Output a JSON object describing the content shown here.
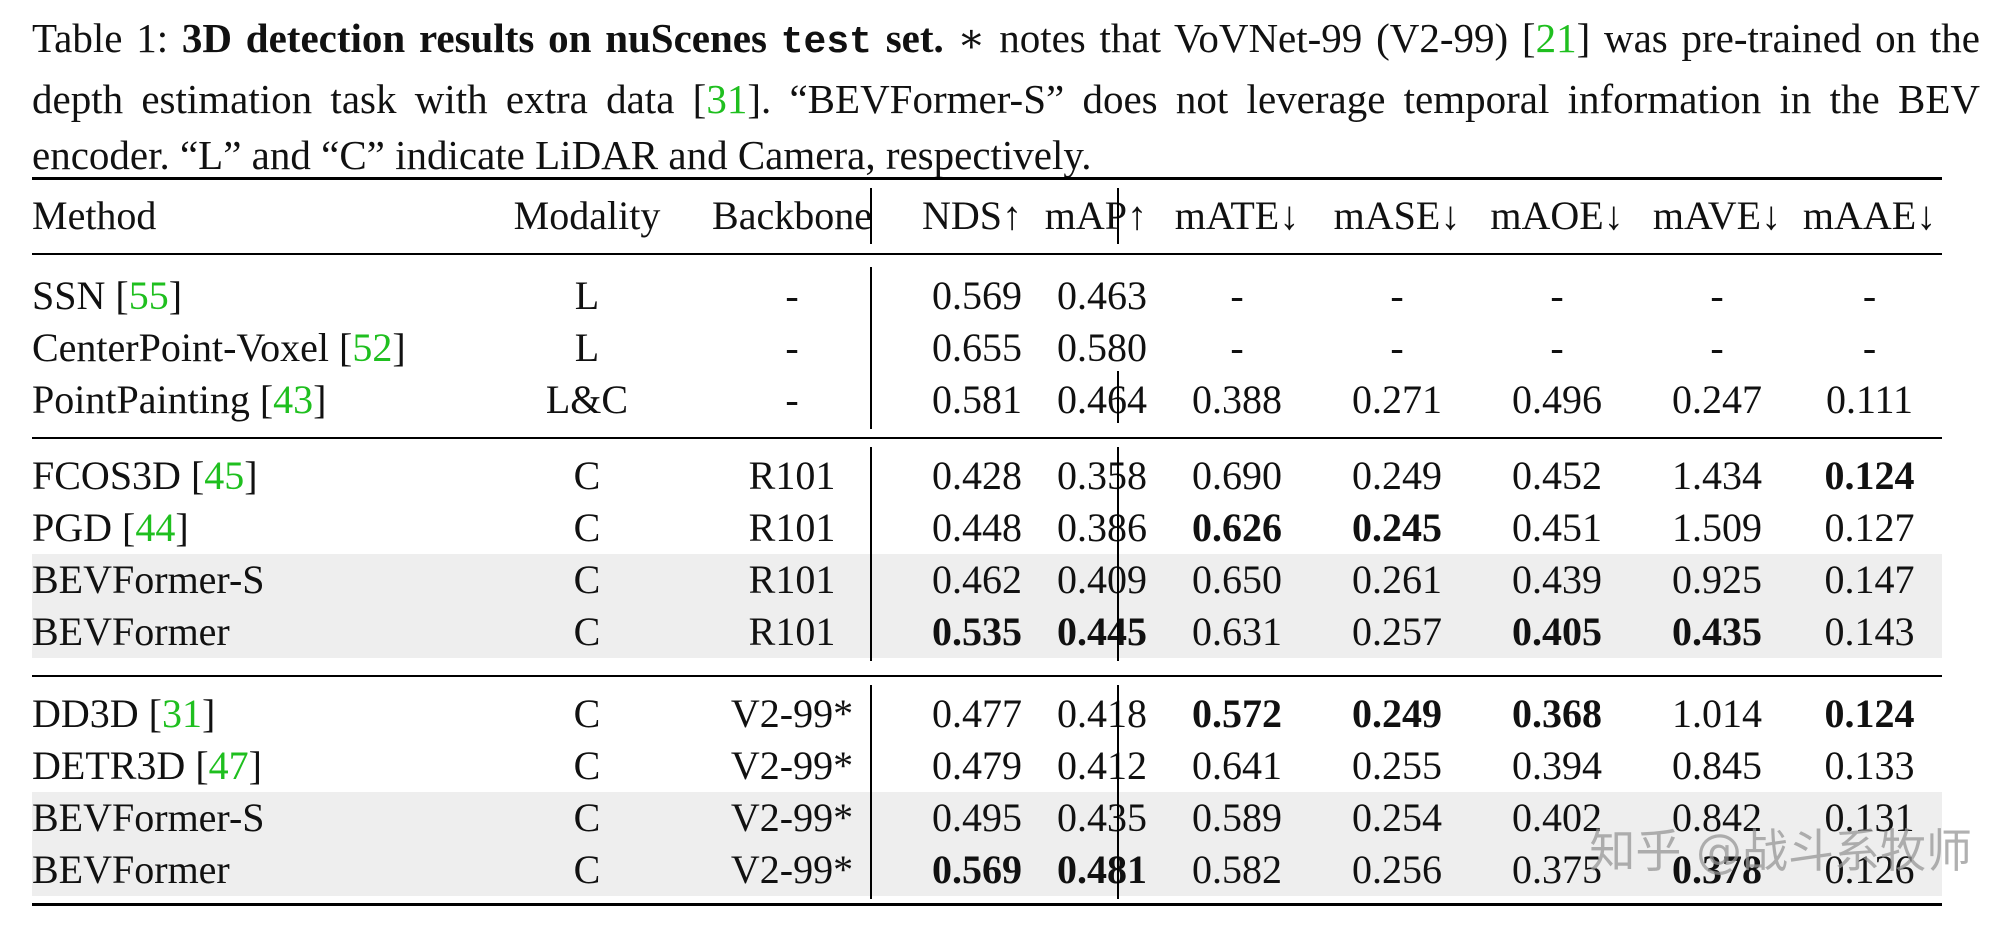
{
  "caption": {
    "label": "Table 1: ",
    "bold_text": "3D detection results on nuScenes ",
    "mono_text": "test",
    "bold_text2": " set.",
    "text1": " ∗ notes that VoVNet-99 (V2-99) [",
    "ref1": "21",
    "text2": "] was pre-trained on the depth estimation task with extra data [",
    "ref2": "31",
    "text3": "]. “BEVFormer-S” does not leverage temporal information in the BEV encoder. “L” and “C” indicate LiDAR and Camera, respectively."
  },
  "table": {
    "headers": [
      "Method",
      "Modality",
      "Backbone",
      "NDS↑",
      "mAP↑",
      "mATE↓",
      "mASE↓",
      "mAOE↓",
      "mAVE↓",
      "mAAE↓"
    ],
    "groups": [
      {
        "rows": [
          {
            "method": "SSN ",
            "ref": "55",
            "modality": "L",
            "backbone": "-",
            "values": [
              "0.569",
              "0.463",
              "-",
              "-",
              "-",
              "-",
              "-"
            ],
            "bold": [],
            "shaded": false
          },
          {
            "method": "CenterPoint-Voxel ",
            "ref": "52",
            "modality": "L",
            "backbone": "-",
            "values": [
              "0.655",
              "0.580",
              "-",
              "-",
              "-",
              "-",
              "-"
            ],
            "bold": [],
            "shaded": false
          },
          {
            "method": "PointPainting ",
            "ref": "43",
            "modality": "L&C",
            "backbone": "-",
            "values": [
              "0.581",
              "0.464",
              "0.388",
              "0.271",
              "0.496",
              "0.247",
              "0.111"
            ],
            "bold": [],
            "shaded": false
          }
        ]
      },
      {
        "rows": [
          {
            "method": "FCOS3D ",
            "ref": "45",
            "modality": "C",
            "backbone": "R101",
            "values": [
              "0.428",
              "0.358",
              "0.690",
              "0.249",
              "0.452",
              "1.434",
              "0.124"
            ],
            "bold": [
              6
            ],
            "shaded": false
          },
          {
            "method": "PGD ",
            "ref": "44",
            "modality": "C",
            "backbone": "R101",
            "values": [
              "0.448",
              "0.386",
              "0.626",
              "0.245",
              "0.451",
              "1.509",
              "0.127"
            ],
            "bold": [
              2,
              3
            ],
            "shaded": false
          },
          {
            "method": "BEVFormer-S",
            "ref": "",
            "modality": "C",
            "backbone": "R101",
            "values": [
              "0.462",
              "0.409",
              "0.650",
              "0.261",
              "0.439",
              "0.925",
              "0.147"
            ],
            "bold": [],
            "shaded": true
          },
          {
            "method": "BEVFormer",
            "ref": "",
            "modality": "C",
            "backbone": "R101",
            "values": [
              "0.535",
              "0.445",
              "0.631",
              "0.257",
              "0.405",
              "0.435",
              "0.143"
            ],
            "bold": [
              0,
              1,
              4,
              5
            ],
            "shaded": true
          }
        ]
      },
      {
        "rows": [
          {
            "method": "DD3D ",
            "ref": "31",
            "modality": "C",
            "backbone": "V2-99*",
            "values": [
              "0.477",
              "0.418",
              "0.572",
              "0.249",
              "0.368",
              "1.014",
              "0.124"
            ],
            "bold": [
              2,
              3,
              4,
              6
            ],
            "shaded": false
          },
          {
            "method": "DETR3D ",
            "ref": "47",
            "modality": "C",
            "backbone": "V2-99*",
            "values": [
              "0.479",
              "0.412",
              "0.641",
              "0.255",
              "0.394",
              "0.845",
              "0.133"
            ],
            "bold": [],
            "shaded": false
          },
          {
            "method": "BEVFormer-S",
            "ref": "",
            "modality": "C",
            "backbone": "V2-99*",
            "values": [
              "0.495",
              "0.435",
              "0.589",
              "0.254",
              "0.402",
              "0.842",
              "0.131"
            ],
            "bold": [],
            "shaded": true
          },
          {
            "method": "BEVFormer",
            "ref": "",
            "modality": "C",
            "backbone": "V2-99*",
            "values": [
              "0.569",
              "0.481",
              "0.582",
              "0.256",
              "0.375",
              "0.378",
              "0.126"
            ],
            "bold": [
              0,
              1,
              5
            ],
            "shaded": true
          }
        ]
      }
    ]
  },
  "watermark": "知乎 @战斗系牧师"
}
